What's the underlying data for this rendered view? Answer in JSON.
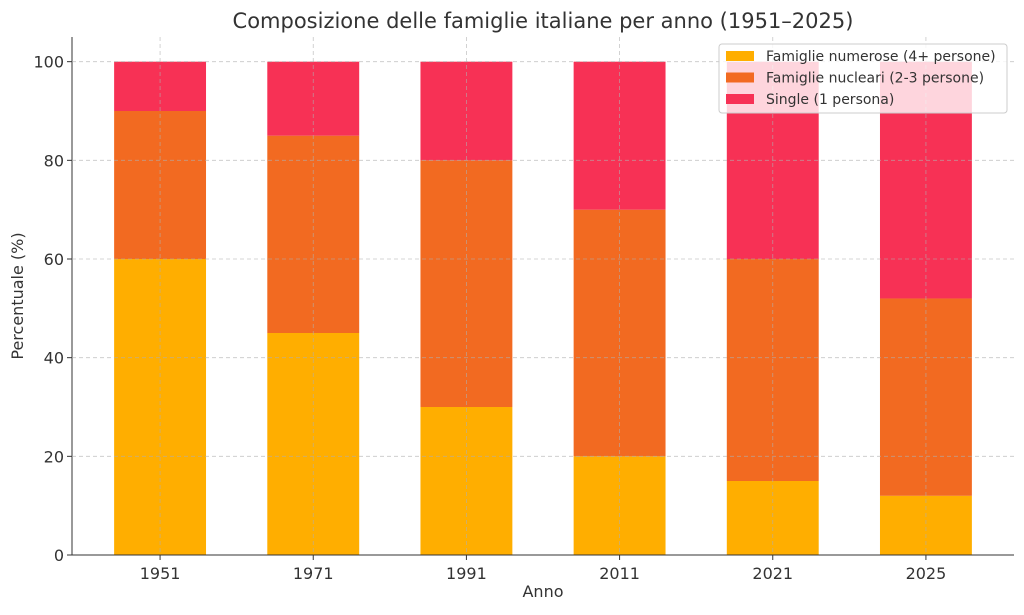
{
  "chart_data": {
    "type": "bar",
    "stacked": true,
    "title": "Composizione delle famiglie italiane per anno (1951–2025)",
    "xlabel": "Anno",
    "ylabel": "Percentuale (%)",
    "categories": [
      "1951",
      "1971",
      "1991",
      "2011",
      "2021",
      "2025"
    ],
    "ylim": [
      0,
      105
    ],
    "yticks": [
      0,
      20,
      40,
      60,
      80,
      100
    ],
    "grid": true,
    "legend_placement": "top-right",
    "series": [
      {
        "name": "Famiglie numerose (4+ persone)",
        "color": "#FFAE00",
        "values": [
          60,
          45,
          30,
          20,
          15,
          12
        ]
      },
      {
        "name": "Famiglie nucleari (2-3 persone)",
        "color": "#F26A21",
        "values": [
          30,
          40,
          50,
          50,
          45,
          40
        ]
      },
      {
        "name": "Single (1 persona)",
        "color": "#F73155",
        "values": [
          10,
          15,
          20,
          30,
          40,
          48
        ]
      }
    ]
  }
}
